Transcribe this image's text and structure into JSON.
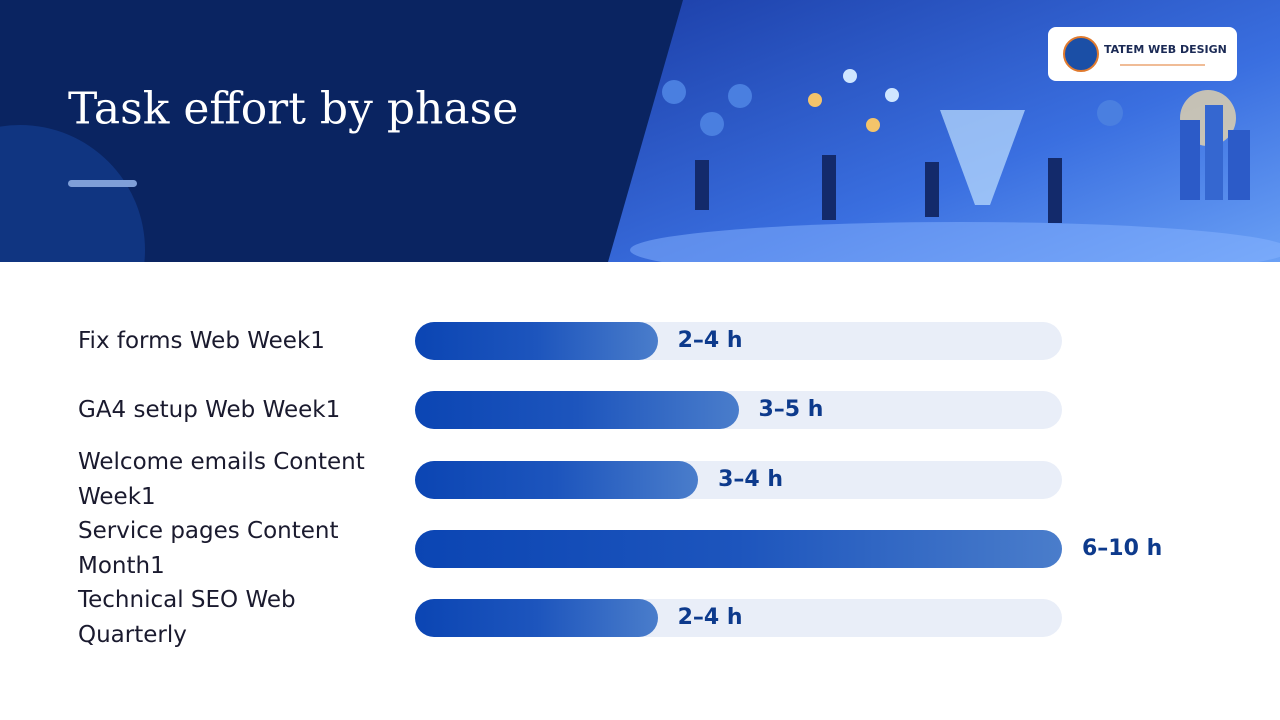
{
  "header": {
    "title": "Task effort by phase",
    "logo": "TATEM WEB DESIGN"
  },
  "chart_data": {
    "type": "bar",
    "categories": [
      "Fix forms Web Week1",
      "GA4 setup Web Week1",
      "Welcome emails Content Week1",
      "Service pages Content Month1",
      "Technical SEO Web Quarterly"
    ],
    "low": [
      2,
      3,
      3,
      6,
      2
    ],
    "high": [
      4,
      5,
      4,
      10,
      4
    ],
    "value_labels": [
      "2–4 h",
      "3–5 h",
      "3–4 h",
      "6–10 h",
      "2–4 h"
    ]
  }
}
